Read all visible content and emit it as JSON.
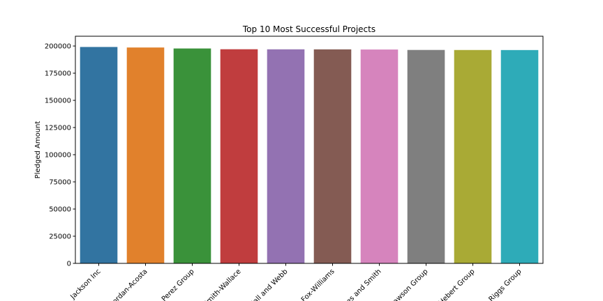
{
  "chart_data": {
    "type": "bar",
    "title": "Top 10 Most Successful Projects",
    "xlabel": "",
    "ylabel": "Pledged Amount",
    "categories": [
      "Jackson Inc",
      "Jordan-Acosta",
      "Perez Group",
      "Smith-Wallace",
      "Hall and Webb",
      "Fox-Williams",
      "Jones and Smith",
      "Lawson Group",
      "Hebert Group",
      "Riggs Group"
    ],
    "values": [
      199110,
      198628,
      197728,
      197024,
      196960,
      196910,
      196779,
      196377,
      196334,
      196285
    ],
    "ylim": [
      0,
      209000
    ],
    "yticks": [
      0,
      25000,
      50000,
      75000,
      100000,
      125000,
      150000,
      175000,
      200000
    ],
    "grid": false,
    "colors": [
      "#3274a1",
      "#e1812c",
      "#3a923a",
      "#c03d3e",
      "#9372b2",
      "#845b53",
      "#d684bd",
      "#7f7f7f",
      "#a9aa35",
      "#2eabb8"
    ]
  }
}
